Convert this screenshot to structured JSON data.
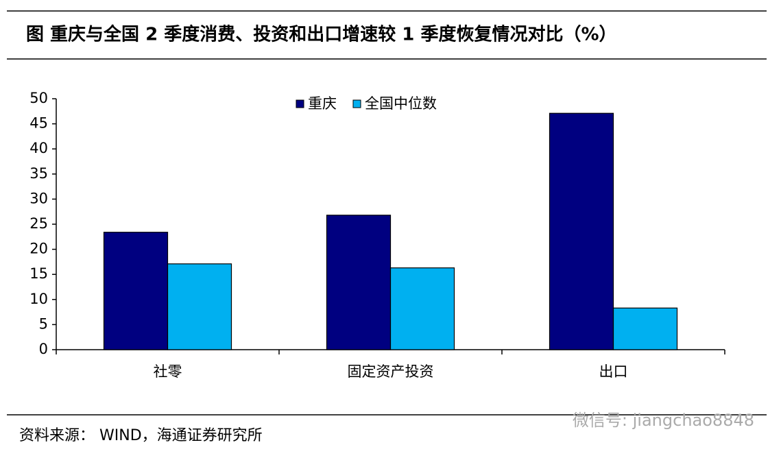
{
  "chart_data": {
    "type": "bar",
    "title": "图  重庆与全国 2 季度消费、投资和出口增速较 1 季度恢复情况对比（%）",
    "categories": [
      "社零",
      "固定资产投资",
      "出口"
    ],
    "series": [
      {
        "name": "重庆",
        "color": "#000080",
        "values": [
          23.4,
          26.8,
          47.1
        ]
      },
      {
        "name": "全国中位数",
        "color": "#00b0f0",
        "values": [
          17.1,
          16.3,
          8.3
        ]
      }
    ],
    "ylim": [
      0,
      50
    ],
    "yticks": [
      0,
      5,
      10,
      15,
      20,
      25,
      30,
      35,
      40,
      45,
      50
    ],
    "legend": "top",
    "source": "资料来源：  WIND，海通证券研究所",
    "watermark": "微信号: jiangchao8848"
  }
}
